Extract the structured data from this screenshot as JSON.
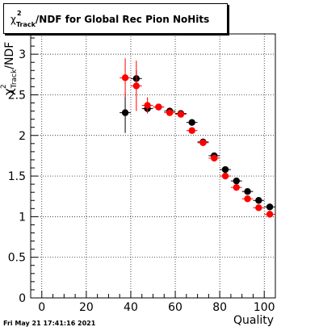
{
  "title": {
    "chi": "χ",
    "sup": "2",
    "sub": "Track",
    "rest": "/NDF for Global Rec Pion NoHits"
  },
  "ylabel": {
    "chi": "χ",
    "sup": "2",
    "sub": "Track",
    "rest": "/NDF"
  },
  "footer": "Fri May 21 17:41:16 2021",
  "colors": {
    "series_black": "#000000",
    "series_red": "#ff0000",
    "grid": "#000000"
  },
  "chart_data": {
    "type": "scatter",
    "xlabel": "Quality",
    "xlim": [
      -5,
      105
    ],
    "ylim": [
      0,
      3.25
    ],
    "grid": true,
    "x_ticks": [
      0,
      20,
      40,
      60,
      80,
      100
    ],
    "y_ticks": [
      0,
      0.5,
      1,
      1.5,
      2,
      2.5,
      3
    ],
    "y_tick_labels": [
      "0",
      "0.5",
      "1",
      "1.5",
      "2",
      "2.5",
      "3"
    ],
    "series": [
      {
        "color": "black",
        "points": [
          {
            "x": 37.5,
            "y": 2.28,
            "err": 0.25
          },
          {
            "x": 42.5,
            "y": 2.7,
            "err": 0.1
          },
          {
            "x": 47.5,
            "y": 2.33,
            "err": 0.04
          },
          {
            "x": 52.5,
            "y": 2.35,
            "err": 0.03
          },
          {
            "x": 57.5,
            "y": 2.3,
            "err": 0.02
          },
          {
            "x": 62.5,
            "y": 2.27,
            "err": 0.02
          },
          {
            "x": 67.5,
            "y": 2.16,
            "err": 0.02
          },
          {
            "x": 72.5,
            "y": 1.92,
            "err": 0.02
          },
          {
            "x": 77.5,
            "y": 1.75,
            "err": 0.02
          },
          {
            "x": 82.5,
            "y": 1.58,
            "err": 0.02
          },
          {
            "x": 87.5,
            "y": 1.44,
            "err": 0.02
          },
          {
            "x": 92.5,
            "y": 1.31,
            "err": 0.02
          },
          {
            "x": 97.5,
            "y": 1.2,
            "err": 0.02
          },
          {
            "x": 102.5,
            "y": 1.12,
            "err": 0.02
          }
        ]
      },
      {
        "color": "red",
        "points": [
          {
            "x": 37.5,
            "y": 2.71,
            "err": 0.24
          },
          {
            "x": 42.5,
            "y": 2.61,
            "err": 0.31
          },
          {
            "x": 47.5,
            "y": 2.37,
            "err": 0.1
          },
          {
            "x": 52.5,
            "y": 2.35,
            "err": 0.03
          },
          {
            "x": 57.5,
            "y": 2.28,
            "err": 0.02
          },
          {
            "x": 62.5,
            "y": 2.26,
            "err": 0.02
          },
          {
            "x": 67.5,
            "y": 2.06,
            "err": 0.02
          },
          {
            "x": 72.5,
            "y": 1.91,
            "err": 0.02
          },
          {
            "x": 77.5,
            "y": 1.72,
            "err": 0.02
          },
          {
            "x": 82.5,
            "y": 1.5,
            "err": 0.02
          },
          {
            "x": 87.5,
            "y": 1.36,
            "err": 0.02
          },
          {
            "x": 92.5,
            "y": 1.22,
            "err": 0.02
          },
          {
            "x": 97.5,
            "y": 1.11,
            "err": 0.02
          },
          {
            "x": 102.5,
            "y": 1.03,
            "err": 0.02
          }
        ]
      }
    ]
  }
}
